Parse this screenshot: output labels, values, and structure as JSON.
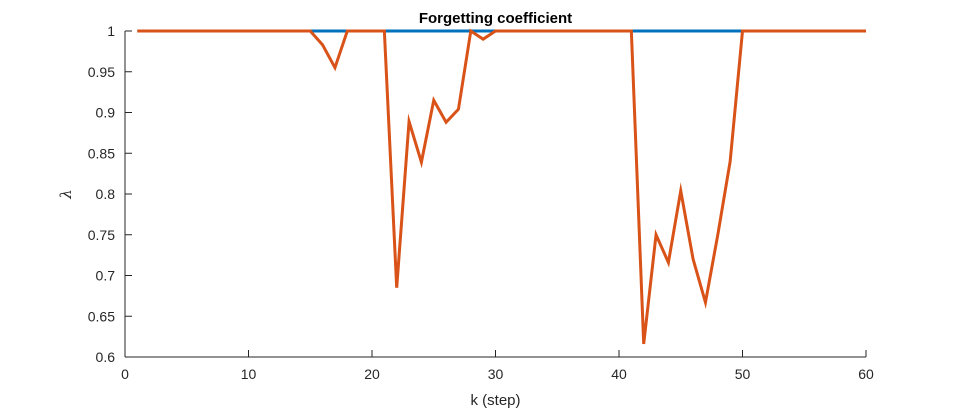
{
  "chart_data": {
    "type": "line",
    "title": "Forgetting coefficient",
    "xlabel": "k (step)",
    "ylabel": "λ",
    "xlim": [
      0,
      60
    ],
    "ylim": [
      0.6,
      1.0
    ],
    "xticks": [
      0,
      10,
      20,
      30,
      40,
      50,
      60
    ],
    "xtick_labels": [
      "0",
      "10",
      "20",
      "30",
      "40",
      "50",
      "60"
    ],
    "yticks": [
      0.6,
      0.65,
      0.7,
      0.75,
      0.8,
      0.85,
      0.9,
      0.95,
      1.0
    ],
    "ytick_labels": [
      "0.6",
      "0.65",
      "0.7",
      "0.75",
      "0.8",
      "0.85",
      "0.9",
      "0.95",
      "1"
    ],
    "grid": false,
    "series": [
      {
        "name": "series-1",
        "color": "#0072bd",
        "x": [
          1,
          60
        ],
        "y": [
          1,
          1
        ]
      },
      {
        "name": "series-2",
        "color": "#d95319",
        "x": [
          1,
          15,
          16,
          17,
          18,
          21,
          22,
          23,
          24,
          25,
          26,
          27,
          28,
          29,
          30,
          41,
          42,
          43,
          44,
          45,
          46,
          47,
          48,
          49,
          50,
          60
        ],
        "y": [
          1,
          1,
          0.983,
          0.955,
          1,
          1,
          0.685,
          0.889,
          0.839,
          0.915,
          0.888,
          0.904,
          1,
          0.99,
          1,
          1,
          0.616,
          0.75,
          0.716,
          0.804,
          0.72,
          0.667,
          0.75,
          0.84,
          1,
          1
        ]
      }
    ]
  }
}
